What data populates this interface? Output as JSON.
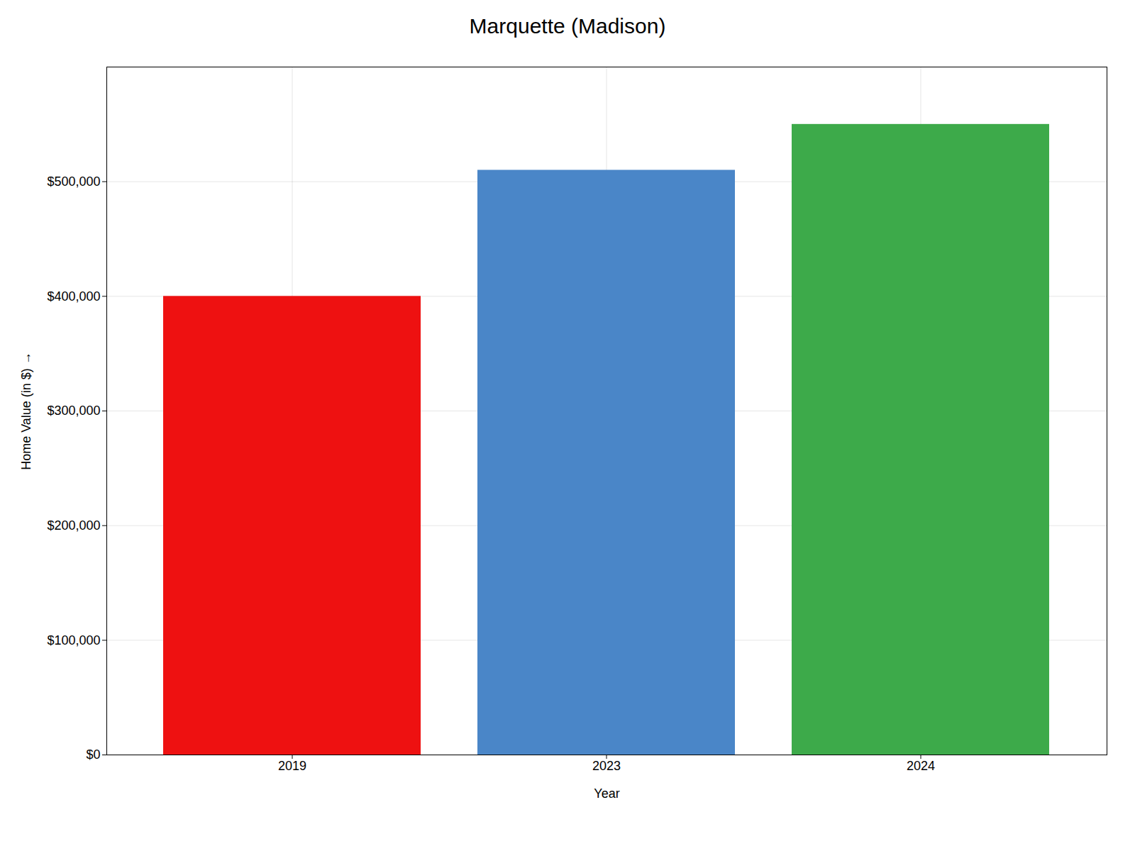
{
  "chart_data": {
    "type": "bar",
    "title": "Marquette (Madison)",
    "xlabel": "Year",
    "ylabel": "Home Value (in $)",
    "categories": [
      "2019",
      "2023",
      "2024"
    ],
    "values": [
      400000,
      510000,
      550000
    ],
    "colors": [
      "#ee1111",
      "#4a86c8",
      "#3daa4a"
    ],
    "ylim": [
      0,
      600000
    ],
    "yticks": [
      {
        "value": 0,
        "label": "$0"
      },
      {
        "value": 100000,
        "label": "$100,000"
      },
      {
        "value": 200000,
        "label": "$200,000"
      },
      {
        "value": 300000,
        "label": "$300,000"
      },
      {
        "value": 400000,
        "label": "$400,000"
      },
      {
        "value": 500000,
        "label": "$500,000"
      }
    ],
    "grid": true
  }
}
